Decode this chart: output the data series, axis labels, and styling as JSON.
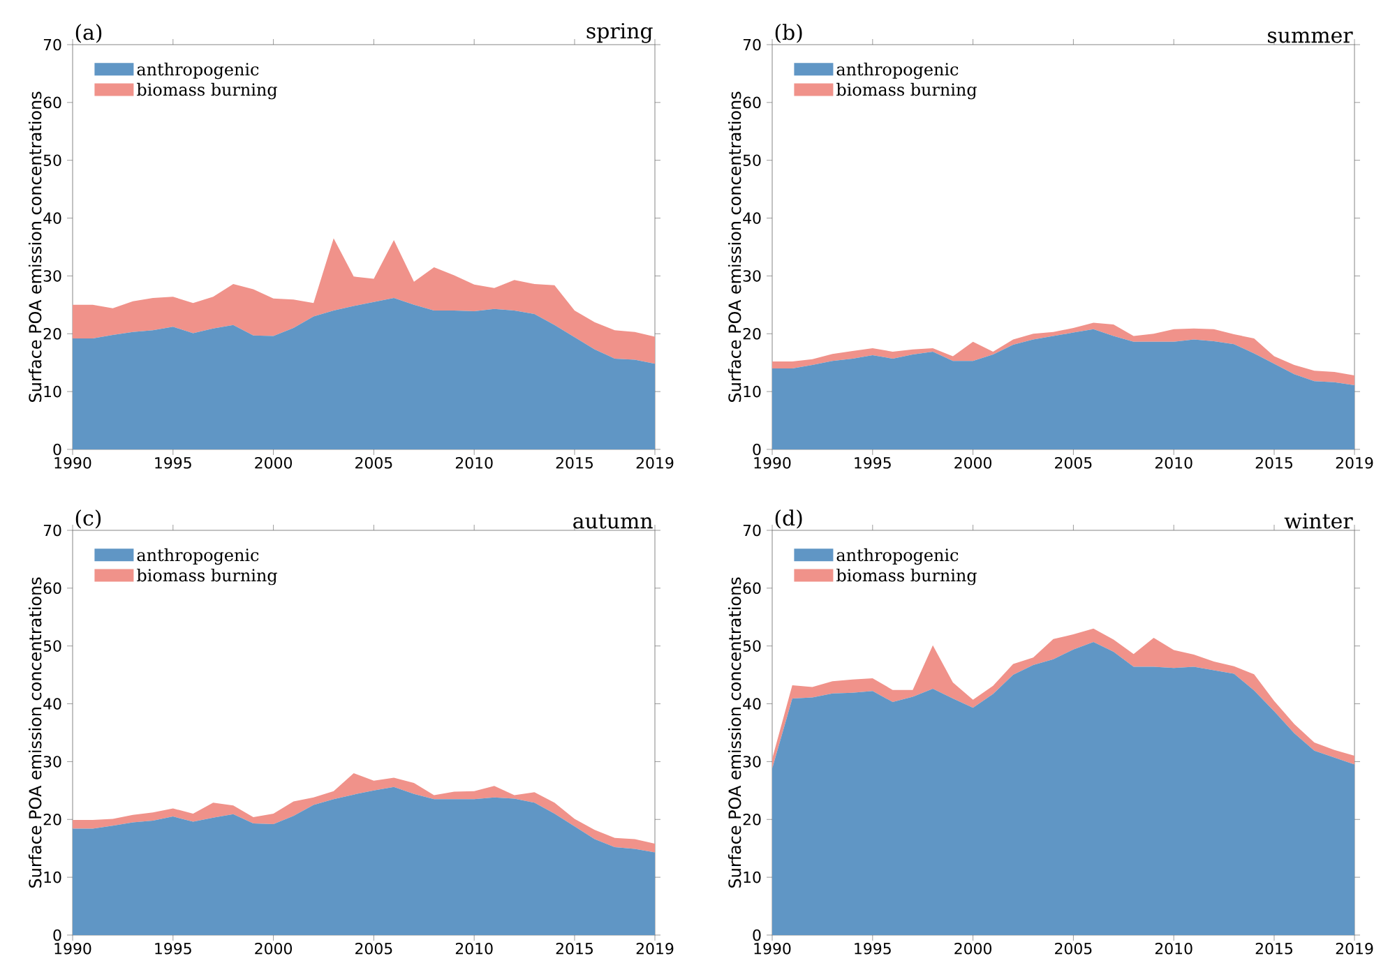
{
  "chart_data": [
    {
      "type": "area",
      "stacked": true,
      "title": "spring",
      "annotations": [
        "(a)"
      ],
      "ylabel": "Surface POA emission concentrations",
      "legend": "top left",
      "x": [
        1990,
        1991,
        1992,
        1993,
        1994,
        1995,
        1996,
        1997,
        1998,
        1999,
        2000,
        2001,
        2002,
        2003,
        2004,
        2005,
        2006,
        2007,
        2008,
        2009,
        2010,
        2011,
        2012,
        2013,
        2014,
        2015,
        2016,
        2017,
        2018,
        2019
      ],
      "xlim": [
        1990,
        2019
      ],
      "xticks": [
        1990,
        1995,
        2000,
        2005,
        2010,
        2015,
        2019
      ],
      "ylim": [
        0,
        70
      ],
      "yticks": [
        0,
        10,
        20,
        30,
        40,
        50,
        60,
        70
      ],
      "series": [
        {
          "name": "anthropogenic",
          "color": "#6096c5",
          "values": [
            19.2,
            19.2,
            19.8,
            20.3,
            20.6,
            21.2,
            20.1,
            20.9,
            21.5,
            19.7,
            19.6,
            21.0,
            23.0,
            24.0,
            24.8,
            25.5,
            26.2,
            25.0,
            24.0,
            24.0,
            23.9,
            24.3,
            24.0,
            23.4,
            21.5,
            19.4,
            17.3,
            15.7,
            15.5,
            14.8
          ]
        },
        {
          "name": "biomass burning",
          "color": "#f0928a",
          "values": [
            5.8,
            5.8,
            4.6,
            5.3,
            5.6,
            5.2,
            5.2,
            5.5,
            7.1,
            8.0,
            6.5,
            4.9,
            2.3,
            12.5,
            5.1,
            4.0,
            10.0,
            4.0,
            7.5,
            6.1,
            4.6,
            3.6,
            5.3,
            5.2,
            6.9,
            4.6,
            4.7,
            4.9,
            4.8,
            4.7
          ]
        }
      ]
    },
    {
      "type": "area",
      "stacked": true,
      "title": "summer",
      "annotations": [
        "(b)"
      ],
      "ylabel": "Surface POA emission concentrations",
      "legend": "top left",
      "x": [
        1990,
        1991,
        1992,
        1993,
        1994,
        1995,
        1996,
        1997,
        1998,
        1999,
        2000,
        2001,
        2002,
        2003,
        2004,
        2005,
        2006,
        2007,
        2008,
        2009,
        2010,
        2011,
        2012,
        2013,
        2014,
        2015,
        2016,
        2017,
        2018,
        2019
      ],
      "xlim": [
        1990,
        2019
      ],
      "xticks": [
        1990,
        1995,
        2000,
        2005,
        2010,
        2015,
        2019
      ],
      "ylim": [
        0,
        70
      ],
      "yticks": [
        0,
        10,
        20,
        30,
        40,
        50,
        60,
        70
      ],
      "series": [
        {
          "name": "anthropogenic",
          "color": "#6096c5",
          "values": [
            14.0,
            14.0,
            14.6,
            15.3,
            15.7,
            16.3,
            15.7,
            16.4,
            16.9,
            15.3,
            15.3,
            16.4,
            18.1,
            19.0,
            19.6,
            20.2,
            20.8,
            19.6,
            18.6,
            18.6,
            18.6,
            19.0,
            18.7,
            18.2,
            16.6,
            14.8,
            13.0,
            11.8,
            11.6,
            11.1
          ]
        },
        {
          "name": "biomass burning",
          "color": "#f0928a",
          "values": [
            1.2,
            1.2,
            1.0,
            1.2,
            1.3,
            1.2,
            1.2,
            0.9,
            0.6,
            0.8,
            3.3,
            0.5,
            0.9,
            1.0,
            0.7,
            0.8,
            1.1,
            2.0,
            1.0,
            1.4,
            2.2,
            1.9,
            2.1,
            1.7,
            2.6,
            1.3,
            1.6,
            1.8,
            1.8,
            1.7
          ]
        }
      ]
    },
    {
      "type": "area",
      "stacked": true,
      "title": "autumn",
      "annotations": [
        "(c)"
      ],
      "ylabel": "Surface POA emission concentrations",
      "legend": "top left",
      "x": [
        1990,
        1991,
        1992,
        1993,
        1994,
        1995,
        1996,
        1997,
        1998,
        1999,
        2000,
        2001,
        2002,
        2003,
        2004,
        2005,
        2006,
        2007,
        2008,
        2009,
        2010,
        2011,
        2012,
        2013,
        2014,
        2015,
        2016,
        2017,
        2018,
        2019
      ],
      "xlim": [
        1990,
        2019
      ],
      "xticks": [
        1990,
        1995,
        2000,
        2005,
        2010,
        2015,
        2019
      ],
      "ylim": [
        0,
        70
      ],
      "yticks": [
        0,
        10,
        20,
        30,
        40,
        50,
        60,
        70
      ],
      "series": [
        {
          "name": "anthropogenic",
          "color": "#6096c5",
          "values": [
            18.4,
            18.4,
            18.9,
            19.5,
            19.8,
            20.5,
            19.6,
            20.3,
            20.9,
            19.3,
            19.2,
            20.6,
            22.5,
            23.5,
            24.3,
            25.0,
            25.6,
            24.4,
            23.5,
            23.5,
            23.5,
            23.8,
            23.6,
            22.9,
            21.0,
            18.8,
            16.6,
            15.2,
            14.9,
            14.3
          ]
        },
        {
          "name": "biomass burning",
          "color": "#f0928a",
          "values": [
            1.5,
            1.5,
            1.2,
            1.3,
            1.4,
            1.4,
            1.4,
            2.6,
            1.5,
            1.1,
            1.8,
            2.5,
            1.3,
            1.4,
            3.7,
            1.7,
            1.6,
            1.9,
            0.7,
            1.3,
            1.4,
            2.0,
            0.6,
            1.8,
            1.9,
            1.3,
            1.6,
            1.6,
            1.7,
            1.5
          ]
        }
      ]
    },
    {
      "type": "area",
      "stacked": true,
      "title": "winter",
      "annotations": [
        "(d)"
      ],
      "ylabel": "Surface POA emission concentrations",
      "legend": "top left",
      "x": [
        1990,
        1991,
        1992,
        1993,
        1994,
        1995,
        1996,
        1997,
        1998,
        1999,
        2000,
        2001,
        2002,
        2003,
        2004,
        2005,
        2006,
        2007,
        2008,
        2009,
        2010,
        2011,
        2012,
        2013,
        2014,
        2015,
        2016,
        2017,
        2018,
        2019
      ],
      "xlim": [
        1990,
        2019
      ],
      "xticks": [
        1990,
        1995,
        2000,
        2005,
        2010,
        2015,
        2019
      ],
      "ylim": [
        0,
        70
      ],
      "yticks": [
        0,
        10,
        20,
        30,
        40,
        50,
        60,
        70
      ],
      "series": [
        {
          "name": "anthropogenic",
          "color": "#6096c5",
          "values": [
            28.8,
            40.9,
            41.1,
            41.8,
            41.9,
            42.2,
            40.3,
            41.2,
            42.6,
            40.9,
            39.3,
            41.7,
            45.0,
            46.7,
            47.7,
            49.4,
            50.7,
            49.0,
            46.4,
            46.4,
            46.2,
            46.4,
            45.8,
            45.2,
            42.3,
            38.7,
            34.9,
            31.9,
            30.7,
            29.5
          ]
        },
        {
          "name": "biomass burning",
          "color": "#f0928a",
          "values": [
            1.7,
            2.3,
            1.8,
            2.1,
            2.3,
            2.2,
            2.1,
            1.2,
            7.5,
            2.8,
            1.4,
            1.4,
            1.9,
            1.3,
            3.5,
            2.6,
            2.3,
            2.1,
            2.2,
            5.0,
            3.1,
            2.1,
            1.5,
            1.3,
            2.8,
            1.8,
            1.6,
            1.4,
            1.3,
            1.5
          ]
        }
      ]
    }
  ]
}
